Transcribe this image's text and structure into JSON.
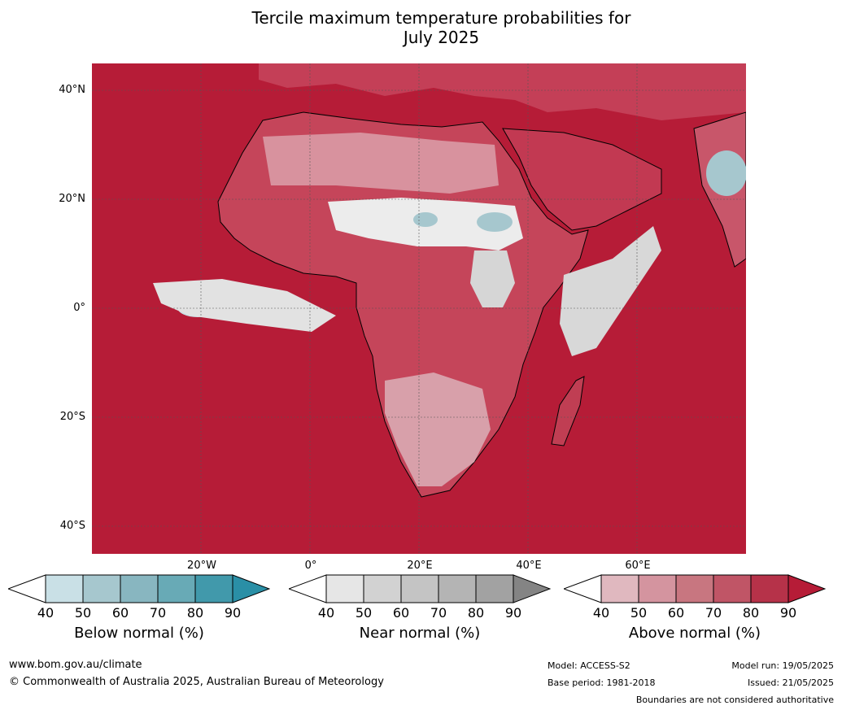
{
  "title_line1": "Tercile maximum temperature probabilities for",
  "title_line2": "July 2025",
  "map": {
    "lat_labels": [
      "40°N",
      "20°N",
      "0°",
      "20°S",
      "40°S"
    ],
    "lon_labels": [
      "20°W",
      "0°",
      "20°E",
      "40°E",
      "60°E"
    ],
    "ocean_color": "#b61c37",
    "land_color": "#c5455a"
  },
  "colorbars": [
    {
      "name": "Below normal (%)",
      "ticks": [
        "40",
        "50",
        "60",
        "70",
        "80",
        "90"
      ],
      "colors": [
        "#ffffff",
        "#c9e0e6",
        "#a6c7ce",
        "#88b6c0",
        "#68aab6",
        "#4199ab",
        "#2a8fa6"
      ]
    },
    {
      "name": "Near normal (%)",
      "ticks": [
        "40",
        "50",
        "60",
        "70",
        "80",
        "90"
      ],
      "colors": [
        "#ffffff",
        "#e6e6e6",
        "#d2d2d2",
        "#c4c4c4",
        "#b4b4b4",
        "#a2a2a2",
        "#848484"
      ]
    },
    {
      "name": "Above normal (%)",
      "ticks": [
        "40",
        "50",
        "60",
        "70",
        "80",
        "90"
      ],
      "colors": [
        "#ffffff",
        "#e0b8bf",
        "#d4949f",
        "#c87680",
        "#c05566",
        "#b63249",
        "#b61c37"
      ]
    }
  ],
  "footer": {
    "website": "www.bom.gov.au/climate",
    "copyright": "© Commonwealth of Australia 2025, Australian Bureau of Meteorology",
    "model": "Model: ACCESS-S2",
    "base_period": "Base period: 1981-2018",
    "model_run": "Model run: 19/05/2025",
    "issued": "Issued: 21/05/2025",
    "disclaimer": "Boundaries are not considered authoritative"
  }
}
